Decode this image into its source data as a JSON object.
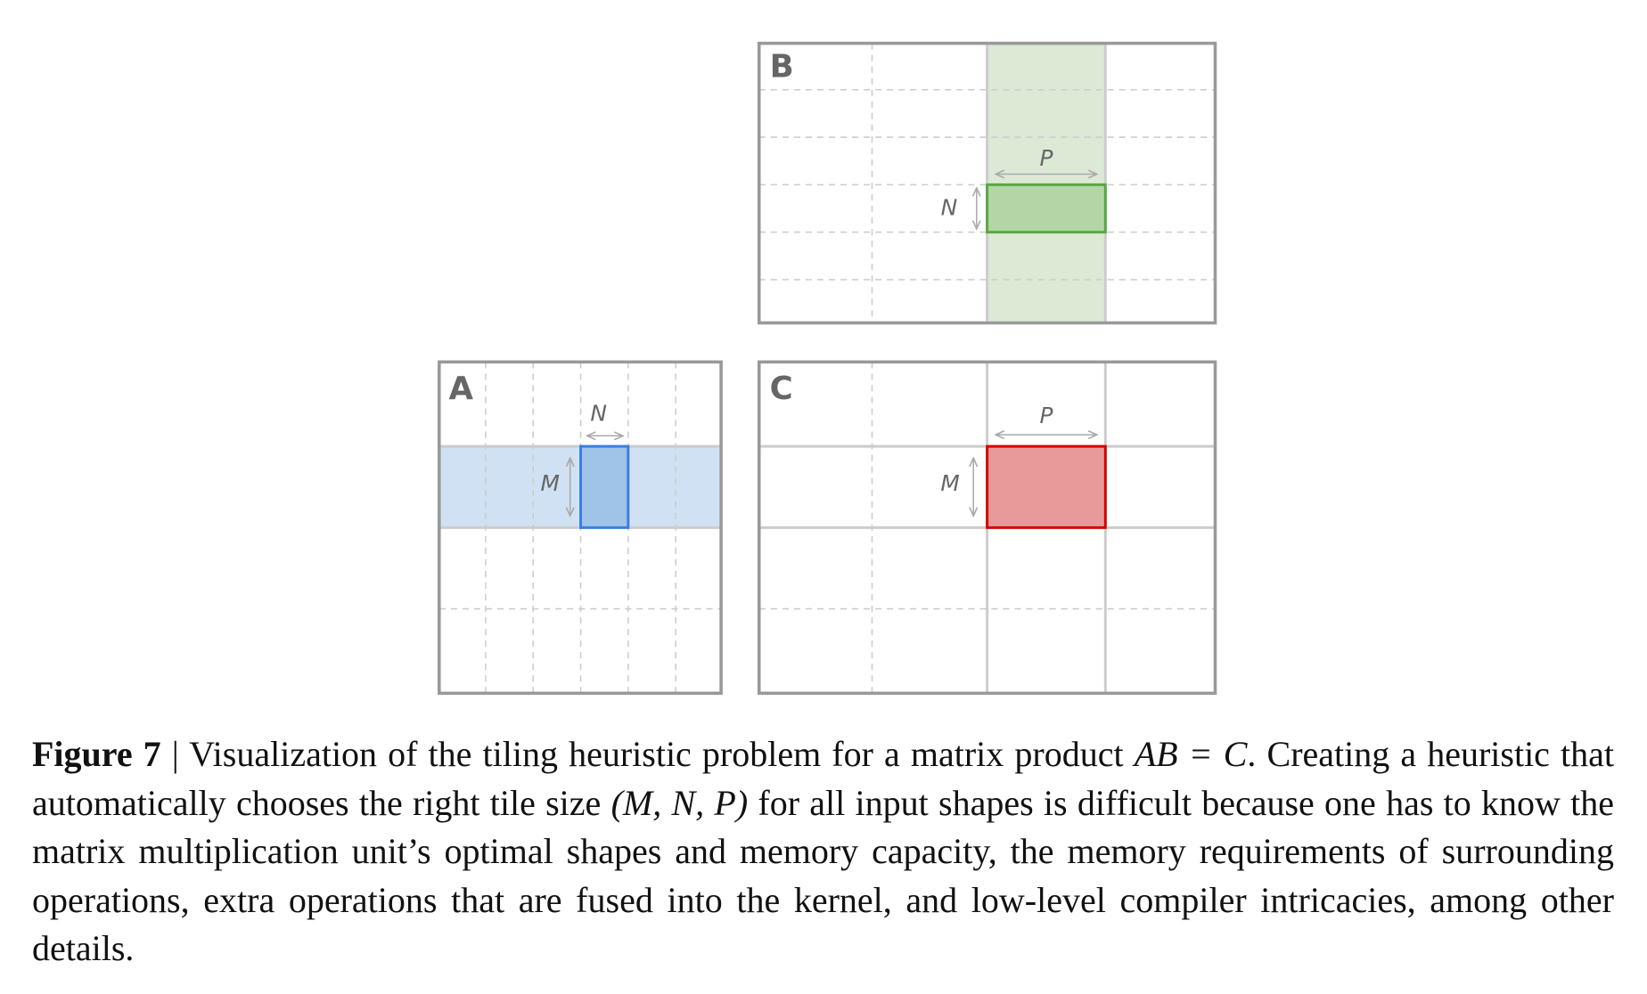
{
  "matrices": {
    "A": {
      "label": "A",
      "tile_color": "#a0c4e8",
      "band_color": "#d0e1f3",
      "border_color": "#3b7de0"
    },
    "B": {
      "label": "B",
      "tile_color": "#b3d6a6",
      "band_color": "#dbe9d5",
      "border_color": "#5aa545"
    },
    "C": {
      "label": "C",
      "tile_color": "#e89a9a",
      "border_color": "#d40000"
    }
  },
  "dimensions": {
    "A_width": "N",
    "A_height": "M",
    "B_width": "P",
    "B_height": "N",
    "C_width": "P",
    "C_height": "M"
  },
  "caption": {
    "figure_label": "Figure 7",
    "separator": " | ",
    "text1": "Visualization of the tiling heuristic problem for a matrix product ",
    "equation": "AB = C",
    "text2": ". Creating a heuristic that automatically chooses the right tile size ",
    "tile_tuple": "(M, N, P)",
    "text3": " for all input shapes is difficult because one has to know the matrix multiplication unit’s optimal shapes and memory capacity, the memory requirements of surrounding operations, extra operations that are fused into the kernel, and low-level compiler intricacies, among other details."
  }
}
